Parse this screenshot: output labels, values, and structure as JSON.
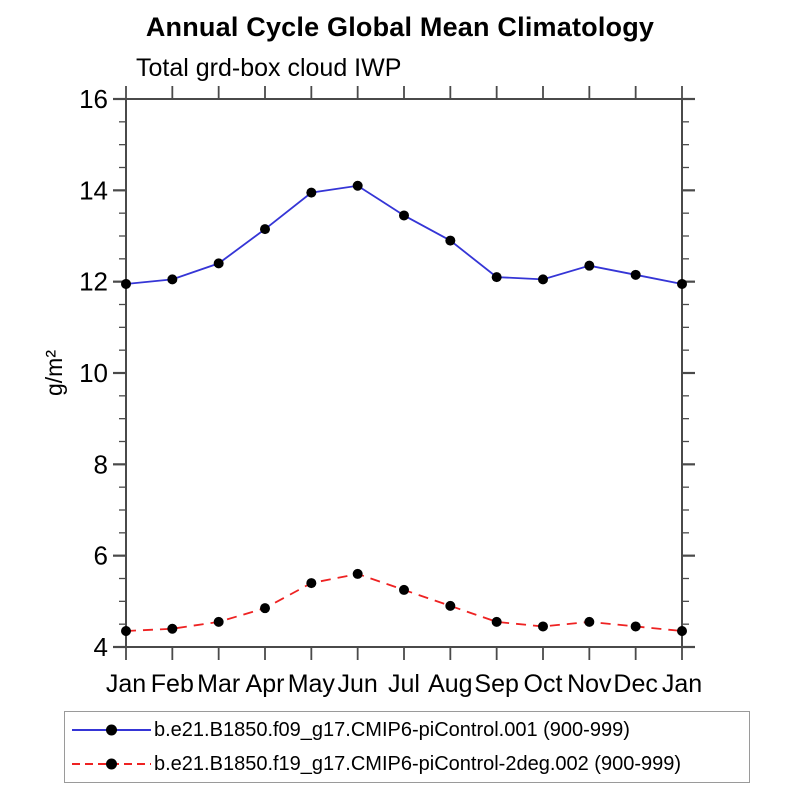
{
  "page": {
    "background_color": "#ffffff"
  },
  "chart_data": {
    "type": "line",
    "title": "Annual Cycle Global Mean Climatology",
    "subtitle": "Total grd-box cloud IWP",
    "ylabel": "g/m²",
    "xlabel": "",
    "x_categories": [
      "Jan",
      "Feb",
      "Mar",
      "Apr",
      "May",
      "Jun",
      "Jul",
      "Aug",
      "Sep",
      "Oct",
      "Nov",
      "Dec",
      "Jan"
    ],
    "ylim": [
      4,
      16
    ],
    "ytick_step": 2,
    "yminor_step": 0.5,
    "grid": false,
    "legend_position": "bottom-left-box",
    "axis_color": "#4a4a4a",
    "text_color": "#000000",
    "series": [
      {
        "name": "b.e21.B1850.f09_g17.CMIP6-piControl.001 (900-999)",
        "color": "#3535d6",
        "line_style": "solid",
        "marker": "filled-circle",
        "marker_color": "#000000",
        "values": [
          11.95,
          12.05,
          12.4,
          13.15,
          13.95,
          14.1,
          13.45,
          12.9,
          12.1,
          12.05,
          12.35,
          12.15,
          11.95
        ]
      },
      {
        "name": "b.e21.B1850.f19_g17.CMIP6-piControl-2deg.002 (900-999)",
        "color": "#ee2222",
        "line_style": "dashed",
        "marker": "filled-circle",
        "marker_color": "#000000",
        "values": [
          4.35,
          4.4,
          4.55,
          4.85,
          5.4,
          5.6,
          5.25,
          4.9,
          4.55,
          4.45,
          4.55,
          4.45,
          4.35
        ]
      }
    ]
  }
}
